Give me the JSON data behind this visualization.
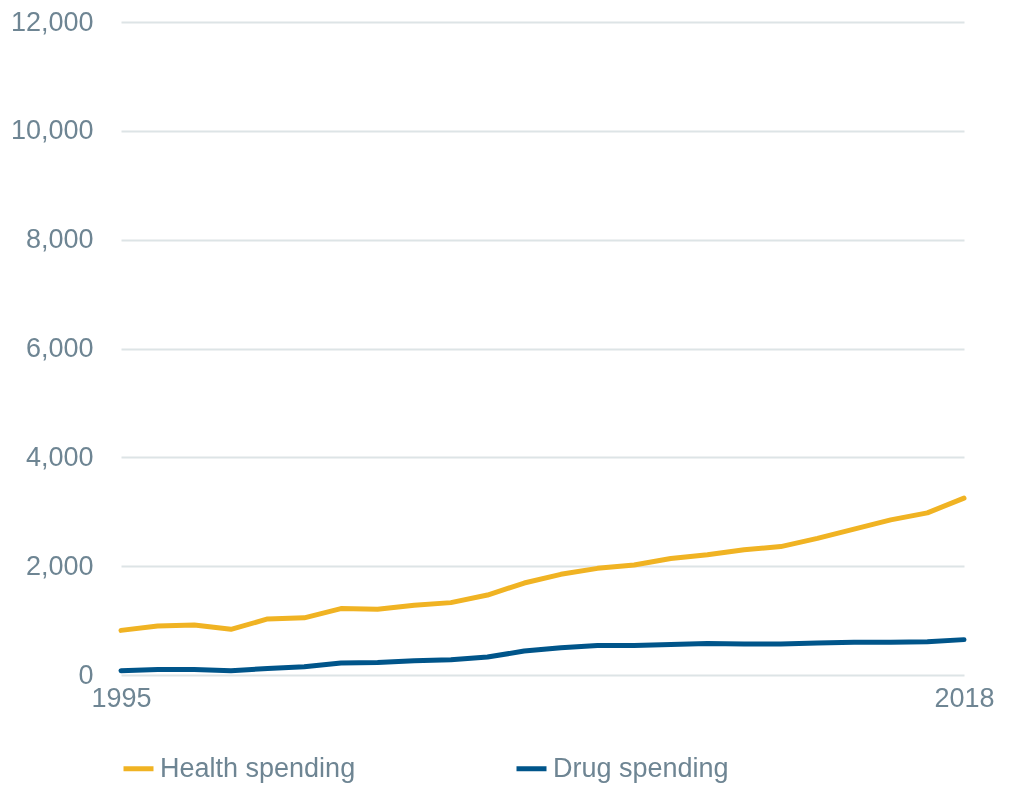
{
  "chart_data": {
    "type": "line",
    "x": [
      1995,
      1996,
      1997,
      1998,
      1999,
      2000,
      2001,
      2002,
      2003,
      2004,
      2005,
      2006,
      2007,
      2008,
      2009,
      2010,
      2011,
      2012,
      2013,
      2014,
      2015,
      2016,
      2017,
      2018
    ],
    "series": [
      {
        "name": "Health spending",
        "color": "#f0b323",
        "values": [
          820,
          900,
          920,
          840,
          1030,
          1050,
          1220,
          1210,
          1280,
          1330,
          1470,
          1690,
          1850,
          1960,
          2020,
          2140,
          2210,
          2300,
          2360,
          2510,
          2680,
          2850,
          2980,
          3250
        ]
      },
      {
        "name": "Drug spending",
        "color": "#00558a",
        "values": [
          80,
          100,
          100,
          80,
          120,
          150,
          220,
          230,
          260,
          280,
          330,
          440,
          500,
          540,
          540,
          560,
          580,
          570,
          570,
          590,
          600,
          600,
          610,
          650
        ]
      }
    ],
    "xlim": [
      1995,
      2018
    ],
    "xticks": [
      1995,
      2018
    ],
    "ylim": [
      0,
      12000
    ],
    "yticks": [
      0,
      {
        "value": 2000,
        "label": "2,000"
      },
      {
        "value": 4000,
        "label": "4,000"
      },
      {
        "value": 6000,
        "label": "6,000"
      },
      {
        "value": 8000,
        "label": "8,000"
      },
      {
        "value": 10000,
        "label": "10,000"
      },
      {
        "value": 12000,
        "label": "12,000"
      }
    ],
    "grid": "y",
    "legend": "bottom",
    "marker": "none",
    "line_style": "solid"
  }
}
